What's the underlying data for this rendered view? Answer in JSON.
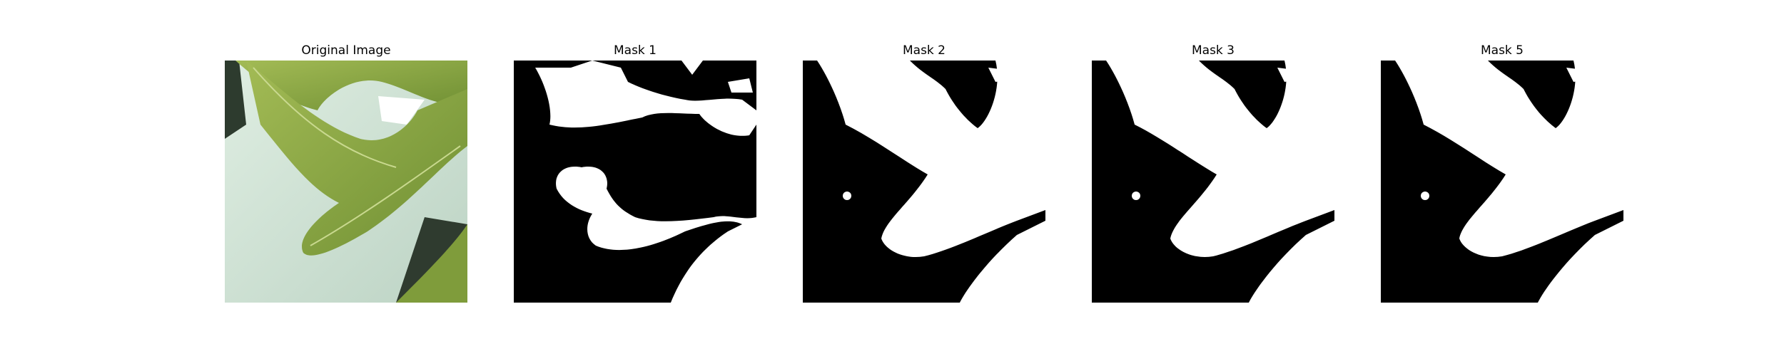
{
  "panels": [
    {
      "title": "Original Image"
    },
    {
      "title": "Mask 1"
    },
    {
      "title": "Mask 2"
    },
    {
      "title": "Mask 3"
    },
    {
      "title": "Mask 5"
    }
  ],
  "colors": {
    "background": "#ffffff",
    "mask_background": "#000000",
    "mask_foreground": "#ffffff",
    "leaf_green": "#8fa94a",
    "surface": "#cfe0d3"
  }
}
